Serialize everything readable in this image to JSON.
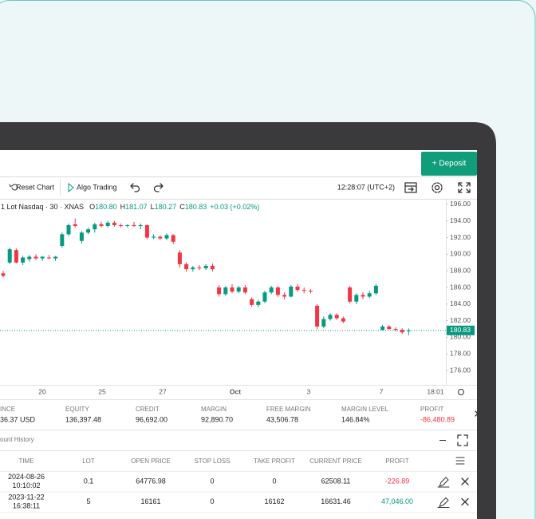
{
  "header": {
    "deposit_button": "+ Deposit"
  },
  "toolbar": {
    "reset_chart": "Reset Chart",
    "algo_trading": "Algo Trading",
    "clock": "12:28:07 (UTC+2)"
  },
  "chart_data": {
    "type": "candlestick",
    "symbol": "1 Lot Nasdaq · 30 · XNAS",
    "ohlc_legend": [
      {
        "key": "O",
        "value": "180.80"
      },
      {
        "key": "H",
        "value": "181.07"
      },
      {
        "key": "L",
        "value": "180.27"
      },
      {
        "key": "C",
        "value": "180.83"
      }
    ],
    "change": "+0.03 (+0.02%)",
    "up_color": "#089981",
    "down_color": "#f23645",
    "candles": [
      [
        187.7,
        188.0,
        187.2,
        187.4
      ],
      [
        189.0,
        190.8,
        188.8,
        190.6
      ],
      [
        190.5,
        190.7,
        188.9,
        189.0
      ],
      [
        189.0,
        189.8,
        188.7,
        189.6
      ],
      [
        189.4,
        189.9,
        189.1,
        189.7
      ],
      [
        189.7,
        190.0,
        189.3,
        189.5
      ],
      [
        189.5,
        189.8,
        189.2,
        189.7
      ],
      [
        189.6,
        189.9,
        189.4,
        189.5
      ],
      [
        189.5,
        189.8,
        189.2,
        189.7
      ],
      [
        191.0,
        192.6,
        190.8,
        192.4
      ],
      [
        192.4,
        193.7,
        192.2,
        193.5
      ],
      [
        193.6,
        194.3,
        193.2,
        193.4
      ],
      [
        191.6,
        192.8,
        191.3,
        192.6
      ],
      [
        192.6,
        193.2,
        192.4,
        193.0
      ],
      [
        193.0,
        193.8,
        192.6,
        193.6
      ],
      [
        193.6,
        193.9,
        193.2,
        193.4
      ],
      [
        193.4,
        194.0,
        193.2,
        193.8
      ],
      [
        193.8,
        194.0,
        193.3,
        193.5
      ],
      [
        193.5,
        193.7,
        193.2,
        193.4
      ],
      [
        193.4,
        193.6,
        193.2,
        193.5
      ],
      [
        193.5,
        193.9,
        193.3,
        193.4
      ],
      [
        193.4,
        193.7,
        193.0,
        193.5
      ],
      [
        193.5,
        193.6,
        191.8,
        192.0
      ],
      [
        192.0,
        192.4,
        191.8,
        192.1
      ],
      [
        192.1,
        192.3,
        191.7,
        191.9
      ],
      [
        191.9,
        192.5,
        191.7,
        192.3
      ],
      [
        192.3,
        192.4,
        191.2,
        191.5
      ],
      [
        190.2,
        190.5,
        188.4,
        188.8
      ],
      [
        188.8,
        189.0,
        187.9,
        188.2
      ],
      [
        188.2,
        188.6,
        187.9,
        188.4
      ],
      [
        188.4,
        188.7,
        188.1,
        188.3
      ],
      [
        188.3,
        188.8,
        188.1,
        188.6
      ],
      [
        188.6,
        188.9,
        187.9,
        188.2
      ],
      [
        186.0,
        186.3,
        184.9,
        185.2
      ],
      [
        185.2,
        186.2,
        185.0,
        186.0
      ],
      [
        186.0,
        186.4,
        185.3,
        185.5
      ],
      [
        185.5,
        186.2,
        185.3,
        186.0
      ],
      [
        186.0,
        186.3,
        185.2,
        185.4
      ],
      [
        184.6,
        184.8,
        183.7,
        183.9
      ],
      [
        183.9,
        184.5,
        183.6,
        184.3
      ],
      [
        184.3,
        185.6,
        184.1,
        185.4
      ],
      [
        185.4,
        186.2,
        185.2,
        186.0
      ],
      [
        186.0,
        186.2,
        184.9,
        185.1
      ],
      [
        185.1,
        185.4,
        184.6,
        184.9
      ],
      [
        184.9,
        186.3,
        184.8,
        186.1
      ],
      [
        186.1,
        186.4,
        185.5,
        185.7
      ],
      [
        185.7,
        186.0,
        185.3,
        185.6
      ],
      [
        185.6,
        185.8,
        185.3,
        185.5
      ],
      [
        183.8,
        184.0,
        181.0,
        181.3
      ],
      [
        181.3,
        182.5,
        181.1,
        182.2
      ],
      [
        182.2,
        182.9,
        182.0,
        182.7
      ],
      [
        182.7,
        182.9,
        182.1,
        182.3
      ],
      [
        182.3,
        182.5,
        181.7,
        181.9
      ],
      [
        186.0,
        186.2,
        184.1,
        184.3
      ],
      [
        184.3,
        185.3,
        184.0,
        185.1
      ],
      [
        185.1,
        185.4,
        184.6,
        184.9
      ],
      [
        184.9,
        185.6,
        184.7,
        185.3
      ],
      [
        185.3,
        186.4,
        185.1,
        186.2
      ],
      [
        180.9,
        181.5,
        180.8,
        181.3
      ],
      [
        181.3,
        181.5,
        180.9,
        181.0
      ],
      [
        181.0,
        181.2,
        180.7,
        180.9
      ],
      [
        180.9,
        181.1,
        180.4,
        180.6
      ],
      [
        180.8,
        181.07,
        180.27,
        180.83
      ]
    ],
    "ylim": [
      174.28,
      196.57
    ],
    "yticks": [
      {
        "value": 196,
        "label": "196.00"
      },
      {
        "value": 194,
        "label": "194.00"
      },
      {
        "value": 192,
        "label": "192.00"
      },
      {
        "value": 190,
        "label": "190.00"
      },
      {
        "value": 188,
        "label": "188.00"
      },
      {
        "value": 186,
        "label": "186.00"
      },
      {
        "value": 184,
        "label": "184.00"
      },
      {
        "value": 182,
        "label": "182.00"
      },
      {
        "value": 180,
        "label": "180.00"
      },
      {
        "value": 178,
        "label": "178.00"
      },
      {
        "value": 176,
        "label": "176.00"
      }
    ],
    "x_labels": [
      "20",
      "25",
      "27",
      "Oct",
      "3",
      "7",
      "18:01"
    ],
    "last_price": {
      "value": 180.83,
      "label": "180.83"
    }
  },
  "account": [
    {
      "label": "INCE",
      "value": "36.37 USD"
    },
    {
      "label": "EQUITY",
      "value": "136,397.48"
    },
    {
      "label": "CREDIT",
      "value": "96,692.00"
    },
    {
      "label": "MARGIN",
      "value": "92,890.70"
    },
    {
      "label": "FREE MARGIN",
      "value": "43,506.78"
    },
    {
      "label": "MARGIN LEVEL",
      "value": "146.84%"
    },
    {
      "label": "PROFIT",
      "value": "-86,480.89"
    }
  ],
  "history": {
    "title": "ount History",
    "columns": [
      "TIME",
      "LOT",
      "OPEN PRICE",
      "STOP LOSS",
      "TAKE PROFIT",
      "CURRENT PRICE",
      "PROFIT"
    ],
    "rows": [
      [
        [
          "2024-08-26",
          "10:10:02"
        ],
        0.1,
        64776.98,
        0,
        0,
        62508.11,
        "-226.89"
      ],
      [
        [
          "2023-11-22",
          "16:38:11"
        ],
        5,
        16161,
        0,
        16162,
        16631.46,
        "47,046.00"
      ]
    ]
  }
}
